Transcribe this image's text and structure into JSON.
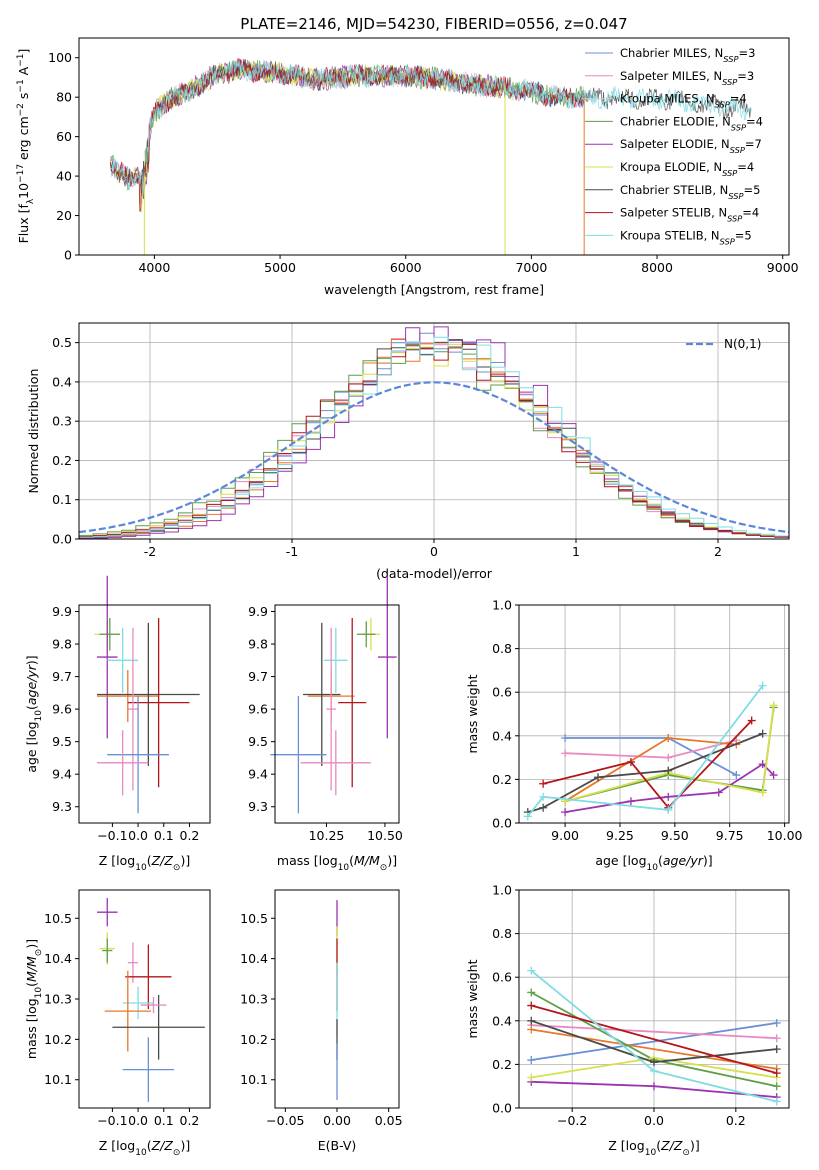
{
  "figure": {
    "title": "PLATE=2146, MJD=54230, FIBERID=0556, z=0.047"
  },
  "colors": {
    "chabrier_miles": "#6b8fd6",
    "salpeter_miles": "#e88ac1",
    "kroupa_miles": "#cfcfcf",
    "chabrier_elodie": "#5e9e4c",
    "salpeter_elodie": "#9a34b0",
    "kroupa_elodie": "#d7e04a",
    "chabrier_stelib": "#4a4a4a",
    "salpeter_stelib": "#b3161a",
    "kroupa_stelib": "#80dce3",
    "orange": "#e8772a",
    "gaussian": "#5b87d9"
  },
  "chart_data": [
    {
      "type": "line",
      "panel": "spectrum",
      "xlabel": "wavelength [Angstrom, rest frame]",
      "ylabel": "Flux [f_λ 10^-17 erg cm^-2 s^-1 A^-1]",
      "xlim": [
        3400,
        9050
      ],
      "ylim": [
        0,
        110
      ],
      "xticks": [
        4000,
        5000,
        6000,
        7000,
        8000,
        9000
      ],
      "yticks": [
        0,
        20,
        40,
        60,
        80,
        100
      ],
      "legend_position": "top-right",
      "series": [
        {
          "name": "Chabrier MILES, N_SSP=3",
          "label_main": "Chabrier MILES, N",
          "label_sub": "SSP",
          "label_tail": "=3",
          "color_key": "chabrier_miles",
          "x_end": 7420
        },
        {
          "name": "Salpeter MILES, N_SSP=3",
          "label_main": "Salpeter MILES, N",
          "label_sub": "SSP",
          "label_tail": "=3",
          "color_key": "salpeter_miles",
          "x_end": 7420
        },
        {
          "name": "Kroupa MILES, N_SSP=4",
          "label_main": "Kroupa MILES, N",
          "label_sub": "SSP",
          "label_tail": "=4",
          "color_key": "kroupa_miles",
          "x_end": 7420
        },
        {
          "name": "Chabrier ELODIE, N_SSP=4",
          "label_main": "Chabrier ELODIE, N",
          "label_sub": "SSP",
          "label_tail": "=4",
          "color_key": "chabrier_elodie",
          "x_end": 7420
        },
        {
          "name": "Salpeter ELODIE, N_SSP=7",
          "label_main": "Salpeter ELODIE, N",
          "label_sub": "SSP",
          "label_tail": "=7",
          "color_key": "salpeter_elodie",
          "x_end": 6790
        },
        {
          "name": "Kroupa ELODIE, N_SSP=4",
          "label_main": "Kroupa ELODIE, N",
          "label_sub": "SSP",
          "label_tail": "=4",
          "color_key": "kroupa_elodie",
          "x_end": 6790
        },
        {
          "name": "Chabrier STELIB, N_SSP=5",
          "label_main": "Chabrier STELIB, N",
          "label_sub": "SSP",
          "label_tail": "=5",
          "color_key": "chabrier_stelib",
          "x_end": 8750
        },
        {
          "name": "Salpeter STELIB, N_SSP=4",
          "label_main": "Salpeter STELIB, N",
          "label_sub": "SSP",
          "label_tail": "=4",
          "color_key": "salpeter_stelib",
          "x_end": 7420
        },
        {
          "name": "Kroupa STELIB, N_SSP=5",
          "label_main": "Kroupa STELIB, N",
          "label_sub": "SSP",
          "label_tail": "=5",
          "color_key": "kroupa_stelib",
          "x_end": 8750
        }
      ],
      "continuum": {
        "x": [
          3650,
          3800,
          3900,
          3950,
          4000,
          4100,
          4300,
          4500,
          4700,
          5000,
          5300,
          5600,
          6000,
          6300,
          6600,
          6900,
          7200,
          7500,
          7800,
          8100,
          8400,
          8700
        ],
        "y": [
          46,
          38,
          42,
          60,
          72,
          78,
          84,
          92,
          94,
          92,
          89,
          91,
          91,
          89,
          86,
          84,
          80,
          80,
          79,
          79,
          76,
          74
        ]
      },
      "drops": [
        {
          "x": 3920,
          "y_from": 40,
          "color_key": "kroupa_elodie"
        },
        {
          "x": 6790,
          "y_from": 86,
          "color_key": "kroupa_elodie"
        },
        {
          "x": 7420,
          "y_from": 80,
          "color_key": "orange"
        }
      ]
    },
    {
      "type": "histogram",
      "panel": "residuals",
      "xlabel": "(data-model)/error",
      "ylabel": "Normed distribution",
      "xlim": [
        -2.5,
        2.5
      ],
      "ylim": [
        0,
        0.55
      ],
      "xticks": [
        -2,
        -1,
        0,
        1,
        2
      ],
      "yticks": [
        0.0,
        0.1,
        0.2,
        0.3,
        0.4,
        0.5
      ],
      "grid": true,
      "bin_width": 0.1,
      "bin_start": -2.5,
      "reference": {
        "name": "N(0,1)",
        "mu": 0,
        "sigma": 1,
        "color_key": "gaussian"
      },
      "legend_position": "top-right",
      "series_colors": [
        "chabrier_miles",
        "salpeter_miles",
        "orange",
        "chabrier_elodie",
        "salpeter_elodie",
        "kroupa_elodie",
        "chabrier_stelib",
        "salpeter_stelib",
        "kroupa_stelib"
      ],
      "peak_scale": [
        1.25,
        1.22,
        1.28,
        1.18,
        1.32,
        1.2,
        1.26,
        1.23,
        1.21
      ],
      "peak_shift": [
        0.02,
        -0.04,
        0.06,
        -0.08,
        0.1,
        0.0,
        0.04,
        -0.02,
        0.08
      ]
    },
    {
      "type": "errorbar",
      "panel": "age-vs-Z",
      "xlabel": "Z [log10(Z/Z⊙)]",
      "ylabel": "age [log10(age/yr)]",
      "xlim": [
        -0.23,
        0.28
      ],
      "ylim": [
        9.25,
        9.92
      ],
      "xticks": [
        -0.1,
        0.0,
        0.1,
        0.2
      ],
      "xtick_labels": [
        "−0.1",
        "0.0",
        "0.1",
        "0.2"
      ],
      "yticks": [
        9.3,
        9.4,
        9.5,
        9.6,
        9.7,
        9.8,
        9.9
      ],
      "points": [
        {
          "x": -0.12,
          "y": 9.83,
          "xerr": 0.05,
          "yerr": 0.04,
          "color_key": "kroupa_elodie"
        },
        {
          "x": -0.11,
          "y": 9.83,
          "xerr": 0.04,
          "yerr": 0.05,
          "color_key": "chabrier_elodie"
        },
        {
          "x": -0.12,
          "y": 9.76,
          "xerr": 0.04,
          "yerr": 0.25,
          "color_key": "salpeter_elodie"
        },
        {
          "x": -0.06,
          "y": 9.75,
          "xerr": 0.06,
          "yerr": 0.1,
          "color_key": "kroupa_stelib"
        },
        {
          "x": -0.04,
          "y": 9.64,
          "xerr": 0.12,
          "yerr": 0.08,
          "color_key": "orange"
        },
        {
          "x": 0.04,
          "y": 9.645,
          "xerr": 0.2,
          "yerr": 0.22,
          "color_key": "chabrier_stelib"
        },
        {
          "x": 0.08,
          "y": 9.62,
          "xerr": 0.12,
          "yerr": 0.26,
          "color_key": "salpeter_stelib"
        },
        {
          "x": -0.02,
          "y": 9.6,
          "xerr": 0.02,
          "yerr": 0.25,
          "color_key": "salpeter_miles"
        },
        {
          "x": 0.0,
          "y": 9.46,
          "xerr": 0.12,
          "yerr": 0.18,
          "color_key": "chabrier_miles"
        },
        {
          "x": -0.06,
          "y": 9.435,
          "xerr": 0.1,
          "yerr": 0.1,
          "color_key": "salpeter_miles"
        }
      ]
    },
    {
      "type": "errorbar",
      "panel": "age-vs-mass",
      "xlabel": "mass [log10(M/M⊙)]",
      "xlim": [
        10.03,
        10.56
      ],
      "ylim": [
        9.25,
        9.92
      ],
      "xticks": [
        10.25,
        10.5
      ],
      "xtick_labels": [
        "10.25",
        "10.50"
      ],
      "yticks": [
        9.3,
        9.4,
        9.5,
        9.6,
        9.7,
        9.8,
        9.9
      ],
      "points": [
        {
          "x": 10.44,
          "y": 9.83,
          "xerr": 0.04,
          "yerr": 0.05,
          "color_key": "kroupa_elodie"
        },
        {
          "x": 10.42,
          "y": 9.83,
          "xerr": 0.04,
          "yerr": 0.04,
          "color_key": "chabrier_elodie"
        },
        {
          "x": 10.51,
          "y": 9.76,
          "xerr": 0.04,
          "yerr": 0.25,
          "color_key": "salpeter_elodie"
        },
        {
          "x": 10.29,
          "y": 9.75,
          "xerr": 0.05,
          "yerr": 0.1,
          "color_key": "kroupa_stelib"
        },
        {
          "x": 10.27,
          "y": 9.64,
          "xerr": 0.1,
          "yerr": 0.08,
          "color_key": "orange"
        },
        {
          "x": 10.23,
          "y": 9.645,
          "xerr": 0.08,
          "yerr": 0.22,
          "color_key": "chabrier_stelib"
        },
        {
          "x": 10.36,
          "y": 9.62,
          "xerr": 0.06,
          "yerr": 0.26,
          "color_key": "salpeter_stelib"
        },
        {
          "x": 10.27,
          "y": 9.6,
          "xerr": 0.02,
          "yerr": 0.25,
          "color_key": "salpeter_miles"
        },
        {
          "x": 10.13,
          "y": 9.46,
          "xerr": 0.12,
          "yerr": 0.18,
          "color_key": "chabrier_miles"
        },
        {
          "x": 10.29,
          "y": 9.435,
          "xerr": 0.15,
          "yerr": 0.1,
          "color_key": "salpeter_miles"
        }
      ]
    },
    {
      "type": "line",
      "panel": "mass-weight-vs-age",
      "xlabel": "age [log10(age/yr)]",
      "ylabel": "mass weight",
      "xlim": [
        8.79,
        10.02
      ],
      "ylim": [
        0,
        1.0
      ],
      "xticks": [
        9.0,
        9.25,
        9.5,
        9.75,
        10.0
      ],
      "xtick_labels": [
        "9.00",
        "9.25",
        "9.50",
        "9.75",
        "10.00"
      ],
      "yticks": [
        0.0,
        0.2,
        0.4,
        0.6,
        0.8,
        1.0
      ],
      "grid": true,
      "series": [
        {
          "color_key": "chabrier_miles",
          "x": [
            9.0,
            9.47,
            9.78
          ],
          "y": [
            0.39,
            0.39,
            0.22
          ]
        },
        {
          "color_key": "salpeter_miles",
          "x": [
            9.0,
            9.47,
            9.78
          ],
          "y": [
            0.32,
            0.3,
            0.38
          ]
        },
        {
          "color_key": "orange",
          "x": [
            9.0,
            9.47,
            9.78
          ],
          "y": [
            0.1,
            0.39,
            0.36
          ]
        },
        {
          "color_key": "chabrier_elodie",
          "x": [
            9.0,
            9.47,
            9.9,
            9.95
          ],
          "y": [
            0.1,
            0.22,
            0.15,
            0.53
          ]
        },
        {
          "color_key": "salpeter_elodie",
          "x": [
            9.0,
            9.3,
            9.47,
            9.7,
            9.9,
            9.95
          ],
          "y": [
            0.05,
            0.1,
            0.12,
            0.14,
            0.27,
            0.22
          ]
        },
        {
          "color_key": "kroupa_elodie",
          "x": [
            9.0,
            9.47,
            9.9,
            9.95
          ],
          "y": [
            0.1,
            0.23,
            0.14,
            0.54
          ]
        },
        {
          "color_key": "chabrier_stelib",
          "x": [
            8.83,
            8.9,
            9.15,
            9.47,
            9.9
          ],
          "y": [
            0.05,
            0.07,
            0.21,
            0.24,
            0.41
          ]
        },
        {
          "color_key": "salpeter_stelib",
          "x": [
            8.9,
            9.3,
            9.47,
            9.85
          ],
          "y": [
            0.18,
            0.28,
            0.07,
            0.47
          ]
        },
        {
          "color_key": "kroupa_stelib",
          "x": [
            8.83,
            8.9,
            9.47,
            9.9
          ],
          "y": [
            0.03,
            0.12,
            0.06,
            0.63
          ]
        }
      ]
    },
    {
      "type": "errorbar",
      "panel": "mass-vs-Z",
      "xlabel": "Z [log10(Z/Z⊙)]",
      "ylabel": "mass [log10(M/M⊙)]",
      "xlim": [
        -0.23,
        0.28
      ],
      "ylim": [
        10.03,
        10.57
      ],
      "xticks": [
        -0.1,
        0.0,
        0.1,
        0.2
      ],
      "xtick_labels": [
        "−0.1",
        "0.0",
        "0.1",
        "0.2"
      ],
      "yticks": [
        10.1,
        10.2,
        10.3,
        10.4,
        10.5
      ],
      "points": [
        {
          "x": -0.12,
          "y": 10.515,
          "xerr": 0.04,
          "yerr": 0.035,
          "color_key": "salpeter_elodie"
        },
        {
          "x": -0.12,
          "y": 10.425,
          "xerr": 0.03,
          "yerr": 0.04,
          "color_key": "kroupa_elodie"
        },
        {
          "x": -0.12,
          "y": 10.42,
          "xerr": 0.02,
          "yerr": 0.03,
          "color_key": "chabrier_elodie"
        },
        {
          "x": -0.02,
          "y": 10.39,
          "xerr": 0.02,
          "yerr": 0.05,
          "color_key": "salpeter_miles"
        },
        {
          "x": 0.04,
          "y": 10.355,
          "xerr": 0.09,
          "yerr": 0.08,
          "color_key": "salpeter_stelib"
        },
        {
          "x": 0.0,
          "y": 10.29,
          "xerr": 0.06,
          "yerr": 0.04,
          "color_key": "kroupa_stelib"
        },
        {
          "x": -0.04,
          "y": 10.27,
          "xerr": 0.09,
          "yerr": 0.1,
          "color_key": "orange"
        },
        {
          "x": 0.08,
          "y": 10.23,
          "xerr": 0.18,
          "yerr": 0.08,
          "color_key": "chabrier_stelib"
        },
        {
          "x": 0.04,
          "y": 10.125,
          "xerr": 0.1,
          "yerr": 0.08,
          "color_key": "chabrier_miles"
        },
        {
          "x": 0.06,
          "y": 10.285,
          "xerr": 0.05,
          "yerr": 0.02,
          "color_key": "salpeter_miles"
        }
      ]
    },
    {
      "type": "errorbar",
      "panel": "mass-vs-EBV",
      "xlabel": "E(B-V)",
      "xlim": [
        -0.06,
        0.06
      ],
      "ylim": [
        10.03,
        10.57
      ],
      "xticks": [
        -0.05,
        0.0,
        0.05
      ],
      "xtick_labels": [
        "−0.05",
        "0.00",
        "0.05"
      ],
      "yticks": [
        10.1,
        10.2,
        10.3,
        10.4,
        10.5
      ],
      "points": [
        {
          "x": 0.0,
          "y": 10.5,
          "xerr": 0,
          "yerr": 0.045,
          "color_key": "salpeter_elodie"
        },
        {
          "x": 0.0,
          "y": 10.42,
          "xerr": 0,
          "yerr": 0.06,
          "color_key": "kroupa_elodie"
        },
        {
          "x": 0.0,
          "y": 10.36,
          "xerr": 0,
          "yerr": 0.09,
          "color_key": "salpeter_stelib"
        },
        {
          "x": 0.0,
          "y": 10.3,
          "xerr": 0,
          "yerr": 0.09,
          "color_key": "kroupa_stelib"
        },
        {
          "x": 0.0,
          "y": 10.2,
          "xerr": 0,
          "yerr": 0.05,
          "color_key": "chabrier_stelib"
        },
        {
          "x": 0.0,
          "y": 10.12,
          "xerr": 0,
          "yerr": 0.07,
          "color_key": "chabrier_miles"
        }
      ]
    },
    {
      "type": "line",
      "panel": "mass-weight-vs-Z",
      "xlabel": "Z [log10(Z/Z⊙)]",
      "ylabel": "mass weight",
      "xlim": [
        -0.33,
        0.33
      ],
      "ylim": [
        0,
        1.0
      ],
      "xticks": [
        -0.2,
        0.0,
        0.2
      ],
      "xtick_labels": [
        "−0.2",
        "0.0",
        "0.2"
      ],
      "yticks": [
        0.0,
        0.2,
        0.4,
        0.6,
        0.8,
        1.0
      ],
      "grid": true,
      "series": [
        {
          "color_key": "chabrier_miles",
          "x": [
            -0.3,
            0.3
          ],
          "y": [
            0.22,
            0.39
          ]
        },
        {
          "color_key": "salpeter_miles",
          "x": [
            -0.3,
            0.3
          ],
          "y": [
            0.38,
            0.32
          ]
        },
        {
          "color_key": "orange",
          "x": [
            -0.3,
            0.3
          ],
          "y": [
            0.36,
            0.18
          ]
        },
        {
          "color_key": "chabrier_elodie",
          "x": [
            -0.3,
            0.0,
            0.3
          ],
          "y": [
            0.53,
            0.22,
            0.1
          ]
        },
        {
          "color_key": "salpeter_elodie",
          "x": [
            -0.3,
            0.0,
            0.3
          ],
          "y": [
            0.12,
            0.1,
            0.05
          ]
        },
        {
          "color_key": "kroupa_elodie",
          "x": [
            -0.3,
            0.0,
            0.3
          ],
          "y": [
            0.14,
            0.23,
            0.14
          ]
        },
        {
          "color_key": "chabrier_stelib",
          "x": [
            -0.3,
            0.0,
            0.3
          ],
          "y": [
            0.4,
            0.21,
            0.27
          ]
        },
        {
          "color_key": "salpeter_stelib",
          "x": [
            -0.3,
            0.3
          ],
          "y": [
            0.47,
            0.16
          ]
        },
        {
          "color_key": "kroupa_stelib",
          "x": [
            -0.3,
            0.0,
            0.3
          ],
          "y": [
            0.63,
            0.17,
            0.03
          ]
        }
      ]
    }
  ]
}
